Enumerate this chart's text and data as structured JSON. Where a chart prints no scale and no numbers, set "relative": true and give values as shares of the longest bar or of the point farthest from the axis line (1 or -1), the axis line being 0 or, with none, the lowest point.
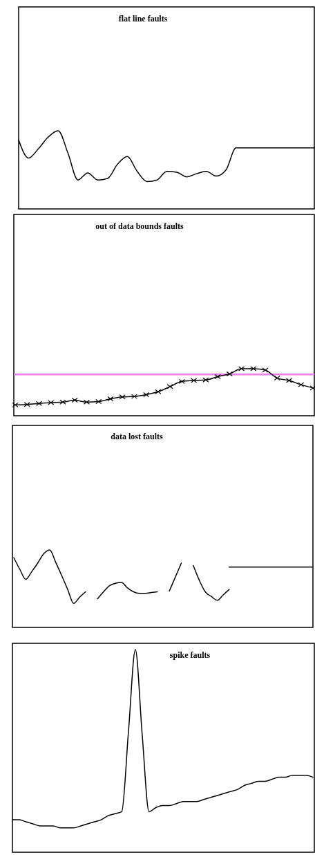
{
  "chart_data": [
    {
      "type": "line",
      "title": "flat line faults",
      "relative": true,
      "categories": [
        null,
        null,
        null,
        null,
        null,
        null,
        null,
        null,
        null,
        null,
        null,
        null,
        null,
        null,
        null,
        null,
        null,
        null,
        null,
        null,
        null,
        null,
        null,
        null,
        null,
        null,
        null,
        null,
        null,
        null,
        null
      ],
      "series": [
        {
          "color": "#000000",
          "values": [
            0.88,
            0.65,
            0.77,
            0.92,
            1,
            0.71,
            0.37,
            0.46,
            0.37,
            0.39,
            0.57,
            0.67,
            0.48,
            0.35,
            0.37,
            0.48,
            0.47,
            0.41,
            0.45,
            0.48,
            0.42,
            0.5,
            0.78,
            0.78,
            0.78,
            0.78,
            0.78,
            0.78,
            0.78,
            0.78,
            0.78
          ]
        }
      ]
    },
    {
      "type": "line",
      "title": "out of data bounds faults",
      "relative": true,
      "marker": "cross",
      "categories": [
        null,
        null,
        null,
        null,
        null,
        null,
        null,
        null,
        null,
        null,
        null,
        null,
        null,
        null,
        null,
        null,
        null,
        null,
        null,
        null,
        null,
        null,
        null,
        null,
        null,
        null
      ],
      "series": [
        {
          "color": "#000000",
          "values": [
            0.23,
            0.24,
            0.26,
            0.28,
            0.29,
            0.33,
            0.29,
            0.3,
            0.36,
            0.4,
            0.41,
            0.45,
            0.51,
            0.62,
            0.73,
            0.75,
            0.76,
            0.83,
            0.89,
            1,
            1,
            0.97,
            0.8,
            0.75,
            0.66,
            0.59
          ]
        }
      ],
      "ref_lines": [
        {
          "axis": "y",
          "value": 0.88,
          "color": "#f07cf0"
        }
      ]
    },
    {
      "type": "line",
      "title": "data lost faults",
      "relative": true,
      "categories": [
        null,
        null,
        null,
        null,
        null,
        null,
        null,
        null,
        null,
        null,
        null,
        null,
        null,
        null,
        null,
        null,
        null,
        null,
        null,
        null,
        null,
        null,
        null,
        null,
        null,
        null,
        null,
        null,
        null,
        null,
        null,
        null,
        null,
        null,
        null,
        null,
        null,
        null,
        null,
        null,
        null,
        null,
        null,
        null,
        null,
        null,
        null,
        null,
        null,
        null,
        null
      ],
      "series": [
        {
          "color": "#000000",
          "values": [
            0.9,
            0.75,
            0.62,
            0.72,
            0.83,
            0.95,
            1,
            0.84,
            0.67,
            0.49,
            0.31,
            0.39,
            0.46,
            null,
            0.37,
            0.46,
            0.54,
            0.57,
            0.58,
            0.51,
            0.46,
            0.44,
            0.44,
            0.45,
            0.46,
            null,
            0.47,
            0.65,
            0.83,
            null,
            0.8,
            0.61,
            0.46,
            0.4,
            0.35,
            0.42,
            0.49,
            null,
            null,
            null,
            null,
            null,
            null,
            null,
            null,
            null,
            null,
            null,
            null,
            null,
            null
          ]
        },
        {
          "color": "#000000",
          "values": [
            null,
            null,
            null,
            null,
            null,
            null,
            null,
            null,
            null,
            null,
            null,
            null,
            null,
            null,
            null,
            null,
            null,
            null,
            null,
            null,
            null,
            null,
            null,
            null,
            null,
            null,
            null,
            null,
            null,
            null,
            null,
            null,
            null,
            null,
            null,
            null,
            0.78,
            0.78,
            0.78,
            0.78,
            0.78,
            0.78,
            0.78,
            0.78,
            0.78,
            0.78,
            0.78,
            0.78,
            0.78,
            0.78,
            0.78
          ]
        }
      ]
    },
    {
      "type": "line",
      "title": "spike faults",
      "relative": true,
      "categories": [
        null,
        null,
        null,
        null,
        null,
        null,
        null,
        null,
        null,
        null,
        null,
        null,
        null,
        null,
        null,
        null,
        null,
        null,
        null,
        null,
        null,
        null,
        null,
        null,
        null,
        null,
        null,
        null,
        null,
        null,
        null,
        null,
        null,
        null,
        null,
        null,
        null,
        null,
        null,
        null,
        null,
        null,
        null,
        null,
        null
      ],
      "series": [
        {
          "color": "#000000",
          "values": [
            0.16,
            0.16,
            0.15,
            0.14,
            0.13,
            0.13,
            0.13,
            0.12,
            0.12,
            0.12,
            0.13,
            0.14,
            0.15,
            0.16,
            0.18,
            0.19,
            0.2,
            0.6,
            1,
            0.58,
            0.2,
            0.22,
            0.23,
            0.23,
            0.24,
            0.25,
            0.25,
            0.25,
            0.26,
            0.27,
            0.28,
            0.29,
            0.3,
            0.31,
            0.33,
            0.34,
            0.35,
            0.35,
            0.36,
            0.37,
            0.37,
            0.38,
            0.38,
            0.38,
            0.37
          ]
        }
      ]
    }
  ]
}
